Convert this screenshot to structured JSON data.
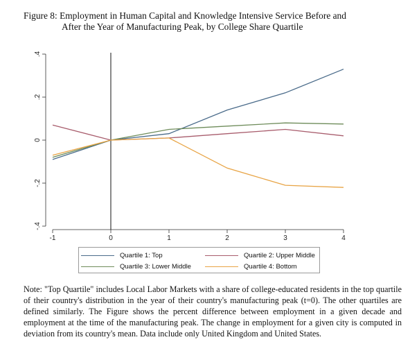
{
  "figure": {
    "caption_line1": "Figure 8: Employment in Human Capital and Knowledge Intensive Service Before and",
    "caption_line2": "After the Year of Manufacturing Peak, by College Share Quartile",
    "note": "Note: \"Top Quartile\" includes Local Labor Markets with a share of college-educated residents in the top quartile of their country's distribution in the year of their country's manufacturing peak (t=0). The other quartiles are defined similarly. The Figure shows the percent difference between employment in a given decade and employment at the time of the manufacturing peak. The change in employment for a given city is computed in deviation from its country's mean. Data include only United Kingdom and United States."
  },
  "chart_data": {
    "type": "line",
    "x": [
      -1,
      0,
      1,
      2,
      3,
      4
    ],
    "xlim": [
      -1,
      4
    ],
    "ylim": [
      -0.4,
      0.4
    ],
    "x_ticks": [
      "-1",
      "0",
      "1",
      "2",
      "3",
      "4"
    ],
    "y_ticks": [
      "-.4",
      "-.2",
      "0",
      ".2",
      ".4"
    ],
    "y_tick_values": [
      -0.4,
      -0.2,
      0,
      0.2,
      0.4
    ],
    "vertical_reference_line_x": 0,
    "grid": false,
    "legend_position": "bottom",
    "series": [
      {
        "name": "Quartile 1: Top",
        "color": "#4a6b8a",
        "values": [
          -0.09,
          0.0,
          0.03,
          0.14,
          0.22,
          0.33
        ]
      },
      {
        "name": "Quartile 2: Upper Middle",
        "color": "#a85c6c",
        "values": [
          0.07,
          0.0,
          0.01,
          0.03,
          0.05,
          0.02
        ]
      },
      {
        "name": "Quartile 3: Lower Middle",
        "color": "#6e8c5a",
        "values": [
          -0.08,
          0.0,
          0.05,
          0.065,
          0.08,
          0.075
        ]
      },
      {
        "name": "Quartile 4: Bottom",
        "color": "#e8a445",
        "values": [
          -0.07,
          0.0,
          0.01,
          -0.13,
          -0.21,
          -0.22
        ]
      }
    ]
  }
}
